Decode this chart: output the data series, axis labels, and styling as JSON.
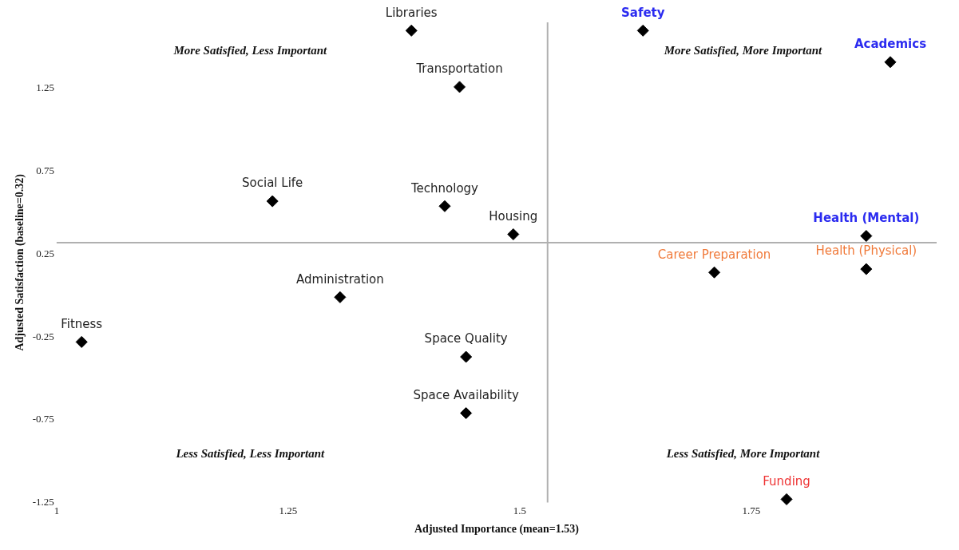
{
  "chart_data": {
    "type": "scatter",
    "xlabel": "Adjusted Importance (mean=1.53)",
    "ylabel": "Adjusted Satisfaction (baseline=0.32)",
    "xlim": [
      1,
      1.95
    ],
    "xticks": [
      1,
      1.25,
      1.5,
      1.75
    ],
    "ylim": [
      -1.25,
      1.65
    ],
    "yticks": [
      -1.25,
      -0.75,
      -0.25,
      0.25,
      0.75,
      1.25
    ],
    "grid": false,
    "legend": false,
    "marker": "diamond",
    "series": [
      {
        "color": "#000000",
        "x": [
          1.383,
          1.435,
          1.233,
          1.419,
          1.493,
          1.306,
          1.027,
          1.442,
          1.442
        ],
        "values": [
          1.6,
          1.26,
          0.57,
          0.54,
          0.37,
          -0.01,
          -0.28,
          -0.37,
          -0.71
        ],
        "value_labels": [
          "Libraries",
          "Transportation",
          "Social Life",
          "Technology",
          "Housing",
          "Administration",
          "Fitness",
          "Space Quality",
          "Space Availability"
        ]
      },
      {
        "color": "#000000",
        "x": [
          1.633,
          1.9,
          1.874
        ],
        "values": [
          1.6,
          1.41,
          0.36
        ],
        "value_labels": [
          "Safety",
          "Academics",
          "Health (Mental)"
        ]
      },
      {
        "color": "#000000",
        "x": [
          1.71,
          1.874
        ],
        "values": [
          0.14,
          0.16
        ],
        "value_labels": [
          "Career Preparation",
          "Health (Physical)"
        ]
      },
      {
        "color": "#000000",
        "x": [
          1.788
        ],
        "values": [
          -1.23
        ],
        "value_labels": [
          "Funding"
        ]
      }
    ],
    "ref_lines": [
      {
        "axis": "x",
        "value": 1.53,
        "color": "#b0b0b0"
      },
      {
        "axis": "y",
        "value": 0.32,
        "color": "#b0b0b0"
      }
    ],
    "annotations": [
      "More Satisfied, Less Important",
      "More Satisfied, More Important",
      "Less Satisfied, Less Important",
      "Less Satisfied, More Important"
    ]
  }
}
